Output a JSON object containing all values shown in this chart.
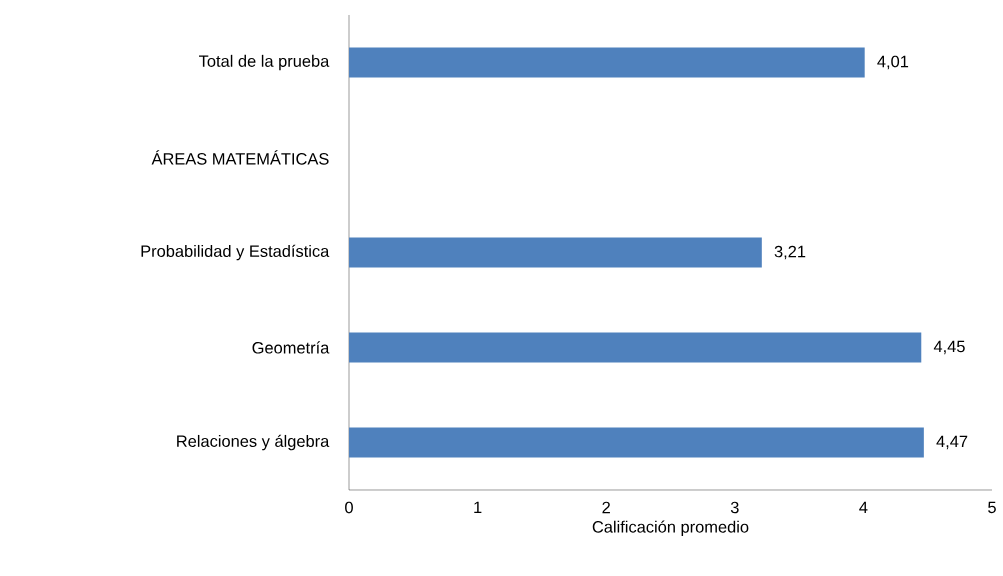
{
  "chart_data": {
    "type": "bar",
    "orientation": "horizontal",
    "xlabel": "Calificación promedio",
    "categories": [
      "Total de la prueba",
      "ÁREAS MATEMÁTICAS",
      "Probabilidad y Estadística",
      "Geometría",
      "Relaciones y álgebra"
    ],
    "values": [
      4.01,
      null,
      3.21,
      4.45,
      4.47
    ],
    "value_labels": [
      "4,01",
      null,
      "3,21",
      "4,45",
      "4,47"
    ],
    "color": "#4f81bd",
    "xlim": [
      0,
      5
    ],
    "xticks": [
      0,
      1,
      2,
      3,
      4,
      5
    ]
  }
}
